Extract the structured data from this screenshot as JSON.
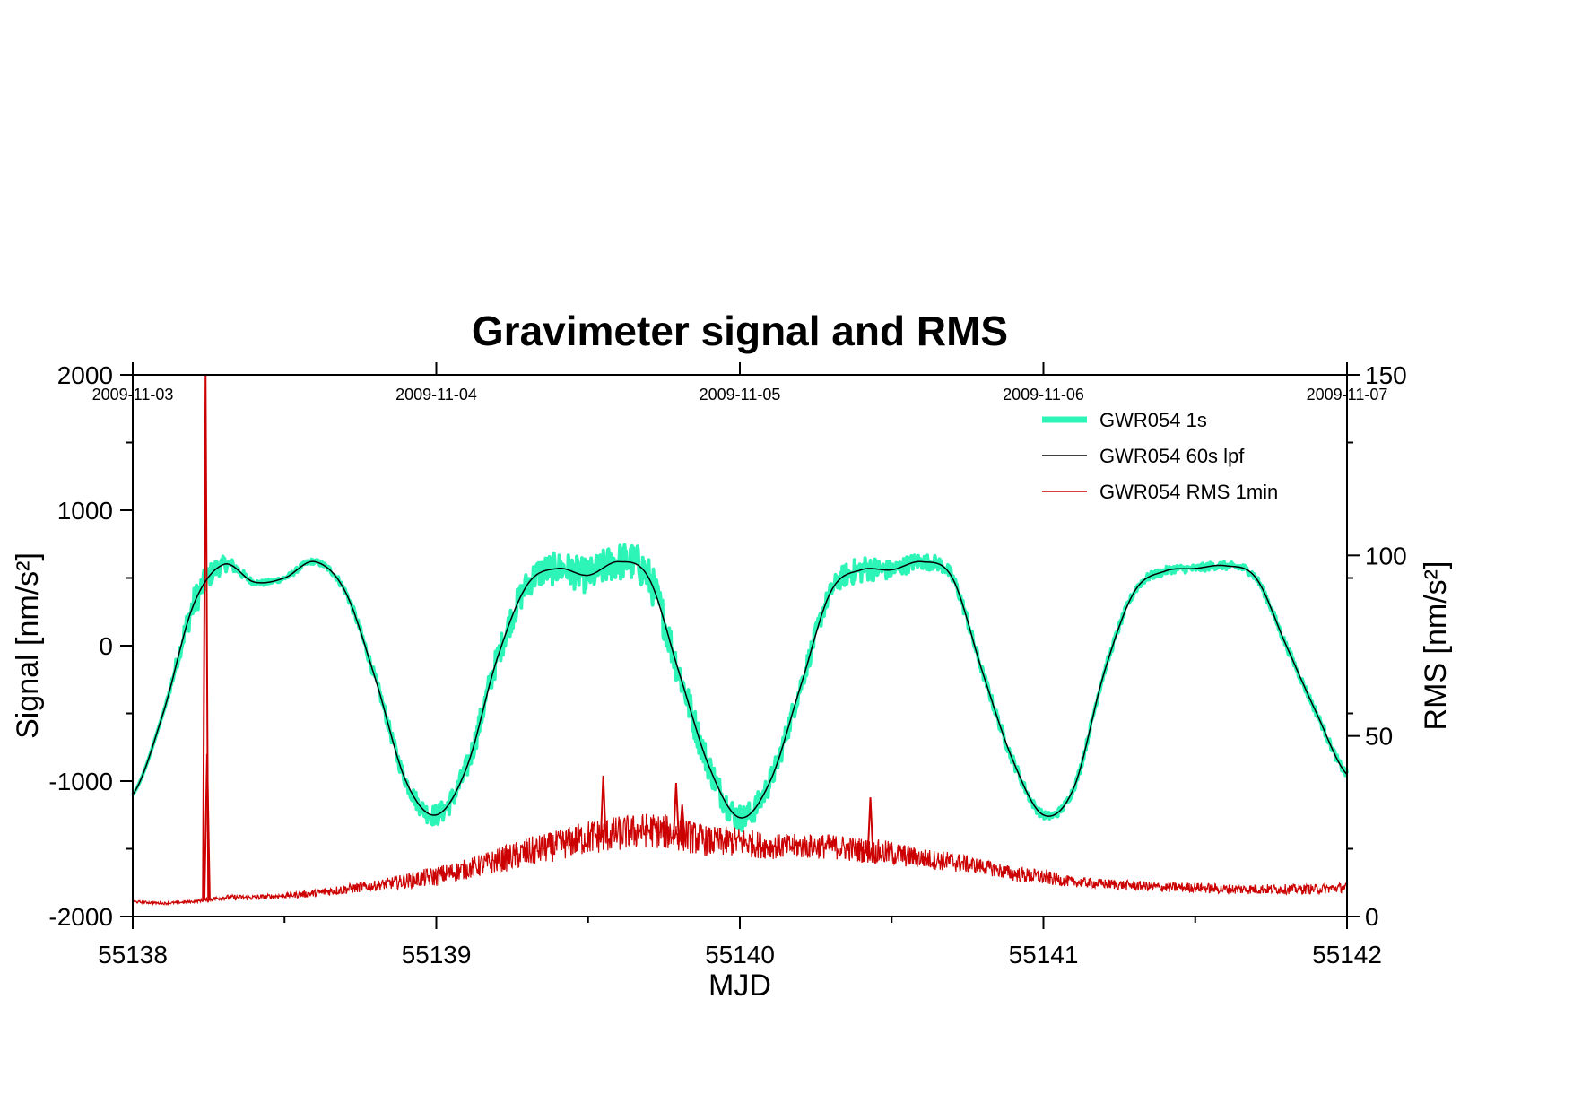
{
  "chart_data": {
    "type": "line",
    "title": "Gravimeter signal and RMS",
    "xlabel": "MJD",
    "ylabel": "Signal [nm/s²]",
    "ylabel_right": "RMS [nm/s²]",
    "xlim": [
      55138,
      55142
    ],
    "ylim": [
      -2000,
      2000
    ],
    "ylim_right": [
      0,
      150
    ],
    "x_ticks": [
      "55138",
      "55139",
      "55140",
      "55141",
      "55142"
    ],
    "y_ticks": [
      "2000",
      "1000",
      "0",
      "-1000",
      "-2000"
    ],
    "y_ticks_right": [
      "150",
      "100",
      "50",
      "0"
    ],
    "date_ticks": [
      "2009-11-03",
      "2009-11-04",
      "2009-11-05",
      "2009-11-06",
      "2009-11-07"
    ],
    "legend_position": "top-right",
    "grid": false,
    "series": [
      {
        "name": "GWR054 1s",
        "color": "#2cf5b7",
        "axis": "left",
        "x": [
          55138.0,
          55138.1,
          55138.2,
          55138.3,
          55138.4,
          55138.5,
          55138.6,
          55138.7,
          55138.8,
          55138.9,
          55139.0,
          55139.1,
          55139.2,
          55139.3,
          55139.4,
          55139.5,
          55139.6,
          55139.7,
          55139.8,
          55139.9,
          55140.0,
          55140.1,
          55140.2,
          55140.3,
          55140.4,
          55140.5,
          55140.6,
          55140.7,
          55140.8,
          55140.9,
          55141.0,
          55141.1,
          55141.2,
          55141.3,
          55141.4,
          55141.5,
          55141.6,
          55141.7,
          55141.8,
          55141.9,
          55142.0
        ],
        "values": [
          -1100,
          -500,
          300,
          600,
          470,
          500,
          620,
          400,
          -250,
          -1000,
          -1250,
          -900,
          -100,
          450,
          570,
          520,
          620,
          500,
          -200,
          -900,
          -1270,
          -1000,
          -300,
          400,
          560,
          560,
          620,
          500,
          -200,
          -850,
          -1250,
          -1050,
          -200,
          400,
          550,
          570,
          590,
          500,
          0,
          -500,
          -950
        ],
        "noise_amplitude": [
          0,
          0,
          120,
          60,
          20,
          20,
          20,
          30,
          40,
          60,
          80,
          90,
          100,
          110,
          120,
          130,
          140,
          150,
          130,
          110,
          100,
          90,
          80,
          70,
          100,
          70,
          60,
          50,
          40,
          40,
          30,
          30,
          30,
          30,
          30,
          30,
          30,
          30,
          30,
          30,
          30
        ]
      },
      {
        "name": "GWR054 60s lpf",
        "color": "#000000",
        "axis": "left",
        "x": [
          55138.0,
          55138.1,
          55138.2,
          55138.3,
          55138.4,
          55138.5,
          55138.6,
          55138.7,
          55138.8,
          55138.9,
          55139.0,
          55139.1,
          55139.2,
          55139.3,
          55139.4,
          55139.5,
          55139.6,
          55139.7,
          55139.8,
          55139.9,
          55140.0,
          55140.1,
          55140.2,
          55140.3,
          55140.4,
          55140.5,
          55140.6,
          55140.7,
          55140.8,
          55140.9,
          55141.0,
          55141.1,
          55141.2,
          55141.3,
          55141.4,
          55141.5,
          55141.6,
          55141.7,
          55141.8,
          55141.9,
          55142.0
        ],
        "values": [
          -1100,
          -500,
          300,
          600,
          470,
          500,
          620,
          400,
          -250,
          -1000,
          -1250,
          -900,
          -100,
          450,
          570,
          520,
          620,
          500,
          -200,
          -900,
          -1270,
          -1000,
          -300,
          400,
          560,
          560,
          620,
          500,
          -200,
          -850,
          -1250,
          -1050,
          -200,
          400,
          550,
          570,
          590,
          500,
          0,
          -500,
          -950
        ]
      },
      {
        "name": "GWR054 RMS 1min",
        "color": "#cc0000",
        "axis": "right",
        "x": [
          55138.0,
          55138.1,
          55138.2,
          55138.24,
          55138.3,
          55138.4,
          55138.5,
          55138.6,
          55138.7,
          55138.8,
          55138.9,
          55139.0,
          55139.1,
          55139.2,
          55139.3,
          55139.4,
          55139.5,
          55139.6,
          55139.7,
          55139.8,
          55139.9,
          55140.0,
          55140.1,
          55140.2,
          55140.3,
          55140.4,
          55140.5,
          55140.6,
          55140.7,
          55140.8,
          55140.9,
          55141.0,
          55141.1,
          55141.2,
          55141.3,
          55141.4,
          55141.5,
          55141.6,
          55141.7,
          55141.8,
          55141.9,
          55142.0
        ],
        "values": [
          4,
          3.5,
          4,
          150,
          5,
          5,
          5.5,
          6,
          7,
          8,
          9,
          10,
          12,
          14,
          16,
          18,
          20,
          21,
          22,
          21,
          19,
          19,
          18,
          18,
          18,
          17,
          16,
          15,
          14,
          13,
          11,
          10,
          9,
          8.5,
          8,
          7.5,
          7.5,
          7,
          7,
          7,
          7,
          7.5
        ],
        "noise_amplitude": [
          0.5,
          0.5,
          0.5,
          0,
          1,
          1,
          1,
          1.5,
          2,
          2,
          3,
          4,
          4,
          5,
          6,
          6,
          7,
          7,
          7,
          7,
          6,
          6,
          5,
          5,
          5,
          5,
          5,
          4,
          4,
          3,
          3,
          3,
          2,
          2,
          2,
          2,
          2,
          2,
          2,
          2,
          2,
          2
        ],
        "spikes": [
          [
            55138.24,
            150
          ],
          [
            55138.245,
            45
          ],
          [
            55139.55,
            39
          ],
          [
            55139.79,
            37
          ],
          [
            55139.81,
            31
          ],
          [
            55140.43,
            33
          ]
        ]
      }
    ]
  }
}
